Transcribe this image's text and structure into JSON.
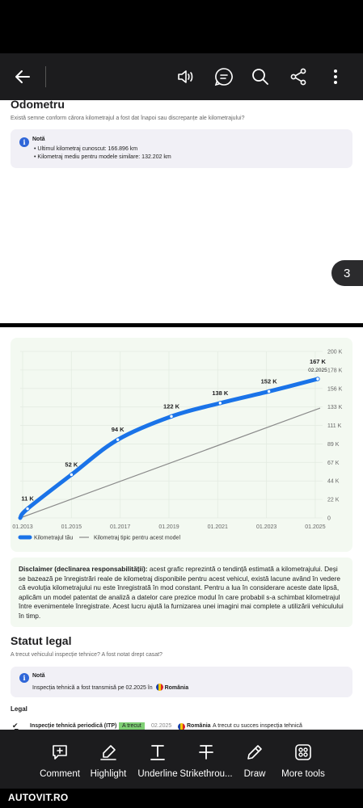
{
  "toolbar": {
    "back_icon": "arrow-left-icon",
    "icons": [
      "read-aloud-icon",
      "ai-assistant-icon",
      "search-icon",
      "share-icon",
      "more-vertical-icon"
    ]
  },
  "odometer": {
    "title": "Odometru",
    "subtitle": "Există semne conform cărora kilometrajul a fost dat înapoi sau discrepanțe ale kilometrajului?",
    "note_title": "Notă",
    "items": [
      "Ultimul kilometraj cunoscut: 166.896 km",
      "Kilometraj mediu pentru modele similare: 132.202 km"
    ]
  },
  "page_indicator": "3",
  "chart_data": {
    "type": "line",
    "x": [
      "01.2013",
      "01.2015",
      "01.2017",
      "01.2019",
      "01.2021",
      "01.2023",
      "01.2025"
    ],
    "x_ticks": [
      "01.2013",
      "01.2015",
      "01.2017",
      "01.2019",
      "01.2021",
      "01.2023",
      "01.2025"
    ],
    "y_ticks": [
      "200 K",
      "178 K",
      "156 K",
      "133 K",
      "111 K",
      "89 K",
      "67 K",
      "44 K",
      "22 K",
      "0"
    ],
    "ylim": [
      0,
      200
    ],
    "series": [
      {
        "name": "Kilometrajul tău",
        "color": "#1a73e8",
        "points": [
          {
            "x": 2012.9,
            "y": 0
          },
          {
            "x": 2013.2,
            "y": 11,
            "label": "11 K"
          },
          {
            "x": 2015.0,
            "y": 52,
            "label": "52 K"
          },
          {
            "x": 2016.9,
            "y": 94,
            "label": "94 K"
          },
          {
            "x": 2019.1,
            "y": 122,
            "label": "122 K"
          },
          {
            "x": 2021.1,
            "y": 138,
            "label": "138 K"
          },
          {
            "x": 2023.1,
            "y": 152,
            "label": "152 K"
          },
          {
            "x": 2025.1,
            "y": 167,
            "label": "167 K",
            "sublabel": "02.2025"
          }
        ]
      },
      {
        "name": "Kilometraj tipic pentru acest model",
        "color": "#8a8a8a",
        "points": [
          {
            "x": 2012.9,
            "y": 0
          },
          {
            "x": 2025.2,
            "y": 132
          }
        ]
      }
    ]
  },
  "disclaimer": {
    "bold": "Disclaimer (declinarea responsabilității):",
    "text": " acest grafic reprezintă o tendință estimată a kilometrajului. Deși se bazează pe înregistrări reale de kilometraj disponibile pentru acest vehicul, există lacune având în vedere că evoluția kilometrajului nu este înregistrată în mod constant. Pentru a lua în considerare aceste date lipsă, aplicăm un model patentat de analiză a datelor care prezice modul în care probabil s-a schimbat kilometrajul între evenimentele înregistrate. Acest lucru ajută la furnizarea unei imagini mai complete a utilizării vehiculului în timp."
  },
  "legal": {
    "title": "Statut legal",
    "subtitle": "A trecut vehiculul inspecție tehnice? A fost notat drept casat?",
    "note_title": "Notă",
    "note_text": "Inspecția tehnică a fost transmisă pe 02.2025 în",
    "note_country": "România",
    "section": "Legal",
    "row": {
      "label": "Inspecție tehnică periodică (ITP)",
      "status": "A trecut",
      "date": "02.2025",
      "country": "România",
      "detail": "A trecut cu succes inspecția tehnică"
    }
  },
  "tools": [
    {
      "label": "Comment",
      "icon": "comment-icon"
    },
    {
      "label": "Highlight",
      "icon": "highlight-icon"
    },
    {
      "label": "Underline",
      "icon": "underline-icon"
    },
    {
      "label": "Strikethrou...",
      "icon": "strikethrough-icon"
    },
    {
      "label": "Draw",
      "icon": "draw-icon"
    },
    {
      "label": "More tools",
      "icon": "more-tools-icon"
    }
  ],
  "footer": "AUTOVIT.RO"
}
